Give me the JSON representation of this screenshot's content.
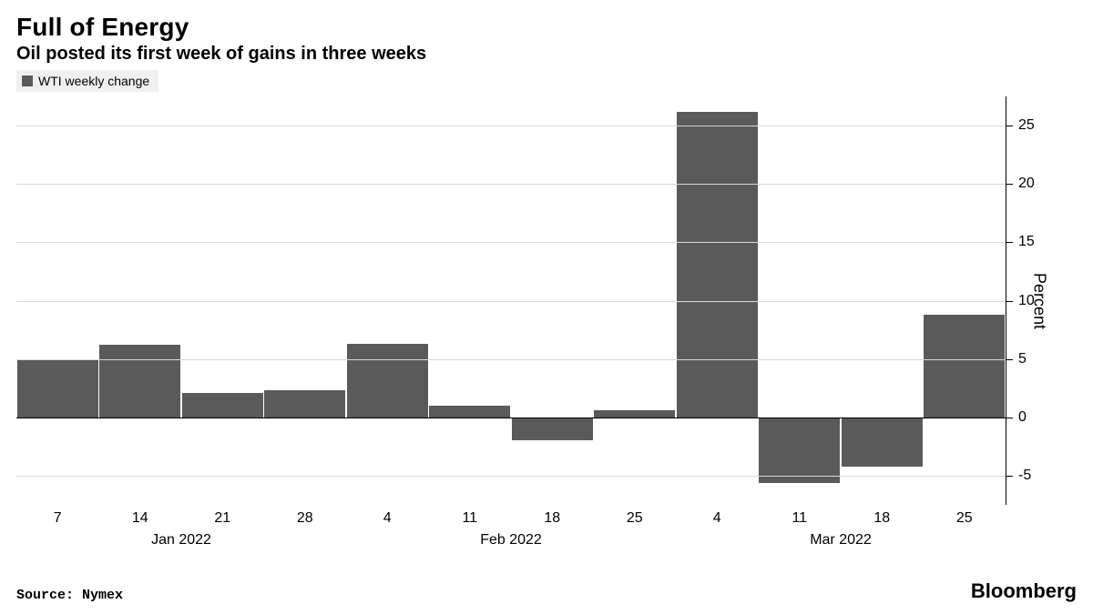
{
  "header": {
    "title": "Full of Energy",
    "subtitle": "Oil posted its first week of gains in three weeks"
  },
  "legend": {
    "swatch_color": "#5a5a5a",
    "label": "WTI weekly change"
  },
  "chart": {
    "type": "bar",
    "bar_color": "#5a5a5a",
    "background_color": "#ffffff",
    "grid_color": "#d9d9d9",
    "axis_color": "#000000",
    "text_color": "#000000",
    "ylabel": "Percent",
    "ylim_min": -7.5,
    "ylim_max": 27.5,
    "yticks": [
      -5,
      0,
      5,
      10,
      15,
      20,
      25
    ],
    "bar_width_ratio": 0.98,
    "categories": [
      "7",
      "14",
      "21",
      "28",
      "4",
      "11",
      "18",
      "25",
      "4",
      "11",
      "18",
      "25"
    ],
    "values": [
      4.9,
      6.2,
      2.1,
      2.3,
      6.3,
      1.0,
      -2.0,
      0.6,
      26.2,
      -5.6,
      -4.2,
      8.8
    ],
    "month_labels": [
      {
        "label": "Jan 2022",
        "center_index": 1.5
      },
      {
        "label": "Feb 2022",
        "center_index": 5.5
      },
      {
        "label": "Mar 2022",
        "center_index": 9.5
      }
    ],
    "tick_label_fontsize": 16,
    "ylabel_fontsize": 18
  },
  "footer": {
    "source": "Source: Nymex",
    "brand": "Bloomberg"
  }
}
